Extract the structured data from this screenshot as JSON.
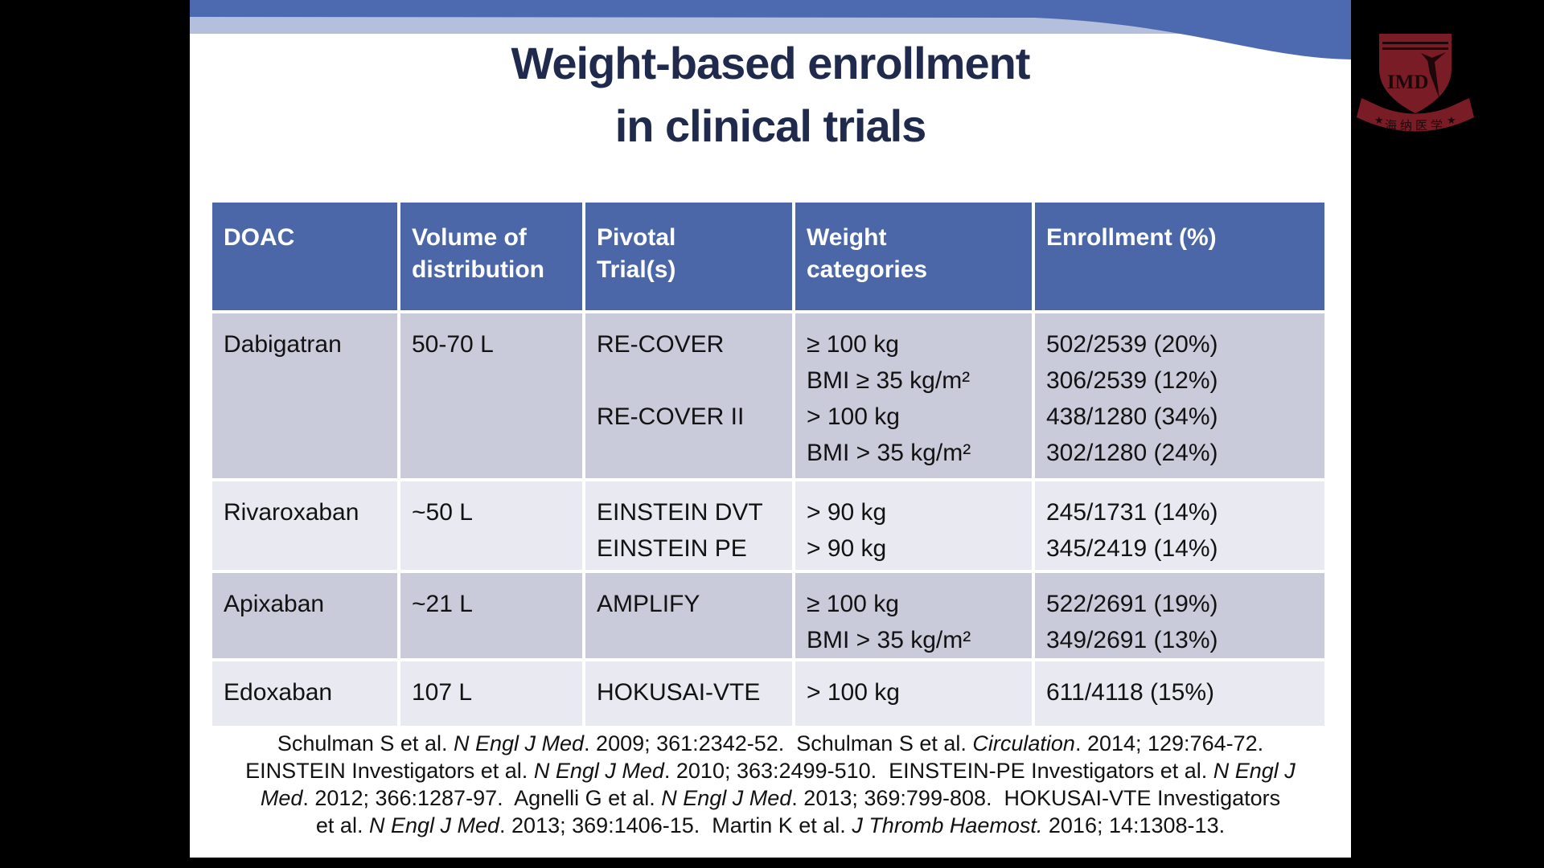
{
  "slide": {
    "title_line1": "Weight-based enrollment",
    "title_line2": "in clinical trials"
  },
  "table": {
    "headers": [
      "DOAC",
      "Volume of\ndistribution",
      "Pivotal\nTrial(s)",
      "Weight\ncategories",
      "Enrollment (%)"
    ],
    "rows": [
      {
        "doac": "Dabigatran",
        "volume": "50-70 L",
        "trials": "RE-COVER\n\nRE-COVER II",
        "weights": "≥ 100 kg\nBMI ≥ 35 kg/m²\n> 100 kg\nBMI > 35 kg/m²",
        "enrollment": "502/2539 (20%)\n306/2539 (12%)\n438/1280 (34%)\n302/1280 (24%)"
      },
      {
        "doac": "Rivaroxaban",
        "volume": "~50 L",
        "trials": "EINSTEIN DVT\nEINSTEIN PE",
        "weights": "> 90 kg\n> 90 kg",
        "enrollment": "245/1731 (14%)\n345/2419 (14%)"
      },
      {
        "doac": "Apixaban",
        "volume": "~21 L",
        "trials": "AMPLIFY",
        "weights": "≥ 100 kg\nBMI > 35 kg/m²",
        "enrollment": "522/2691 (19%)\n349/2691 (13%)"
      },
      {
        "doac": "Edoxaban",
        "volume": "107 L",
        "trials": "HOKUSAI-VTE",
        "weights": "> 100 kg",
        "enrollment": "611/4118 (15%)"
      }
    ]
  },
  "citations": [
    [
      {
        "t": "Schulman S et al. "
      },
      {
        "t": "N Engl J Med",
        "i": true
      },
      {
        "t": ". 2009; 361:2342-52.  Schulman S et al. "
      },
      {
        "t": "Circulation",
        "i": true
      },
      {
        "t": ". 2014; 129:764-72."
      }
    ],
    [
      {
        "t": "EINSTEIN Investigators et al. "
      },
      {
        "t": "N Engl J Med",
        "i": true
      },
      {
        "t": ". 2010; 363:2499-510.  EINSTEIN-PE Investigators et al. "
      },
      {
        "t": "N Engl J",
        "i": true
      }
    ],
    [
      {
        "t": "Med",
        "i": true
      },
      {
        "t": ". 2012; 366:1287-97.  Agnelli G et al. "
      },
      {
        "t": "N Engl J Med",
        "i": true
      },
      {
        "t": ". 2013; 369:799-808.  HOKUSAI-VTE Investigators"
      }
    ],
    [
      {
        "t": "et al. "
      },
      {
        "t": "N Engl J Med",
        "i": true
      },
      {
        "t": ". 2013; 369:1406-15.  Martin K et al. "
      },
      {
        "t": "J Thromb Haemost.",
        "i": true
      },
      {
        "t": " 2016; 14:1308-13."
      }
    ]
  ],
  "logo": {
    "acronym": "IMD",
    "banner_text": "海纳医学",
    "star": "★"
  },
  "colors": {
    "banner_blue": "#4d6ab0",
    "banner_stripe": "#b4bedd",
    "header_bg": "#4b67a7",
    "row_dark": "#c9cada",
    "row_light": "#e8e9f1",
    "title_navy": "#1f2a4c",
    "logo_red": "#7a1c26",
    "logo_dark": "#1c070a",
    "text_dark": "#121212"
  }
}
